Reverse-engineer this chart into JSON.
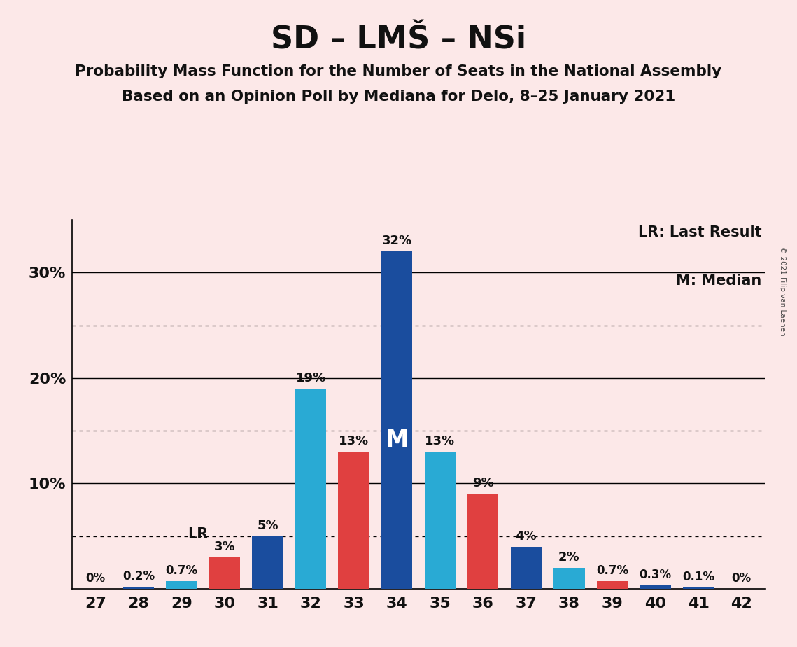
{
  "title": "SD – LMŠ – NSi",
  "subtitle1": "Probability Mass Function for the Number of Seats in the National Assembly",
  "subtitle2": "Based on an Opinion Poll by Mediana for Delo, 8–25 January 2021",
  "copyright": "© 2021 Filip van Laenen",
  "seats": [
    27,
    28,
    29,
    30,
    31,
    32,
    33,
    34,
    35,
    36,
    37,
    38,
    39,
    40,
    41,
    42
  ],
  "values": [
    0.0,
    0.2,
    0.7,
    3.0,
    5.0,
    19.0,
    13.0,
    32.0,
    13.0,
    9.0,
    4.0,
    2.0,
    0.7,
    0.3,
    0.1,
    0.0
  ],
  "labels": [
    "0%",
    "0.2%",
    "0.7%",
    "3%",
    "5%",
    "19%",
    "13%",
    "32%",
    "13%",
    "9%",
    "4%",
    "2%",
    "0.7%",
    "0.3%",
    "0.1%",
    "0%"
  ],
  "colors": [
    "#1a4d9e",
    "#1a4d9e",
    "#29aad4",
    "#e04040",
    "#1a4d9e",
    "#29aad4",
    "#e04040",
    "#1a4d9e",
    "#29aad4",
    "#e04040",
    "#1a4d9e",
    "#29aad4",
    "#e04040",
    "#1a4d9e",
    "#1a4d9e",
    "#1a4d9e"
  ],
  "lr_seat": 30,
  "median_seat": 34,
  "background_color": "#fce8e8",
  "ylim": [
    0,
    35
  ],
  "dotted_yticks": [
    5,
    15,
    25
  ],
  "solid_yticks": [
    10,
    20,
    30
  ],
  "legend_lr": "LR: Last Result",
  "legend_m": "M: Median"
}
